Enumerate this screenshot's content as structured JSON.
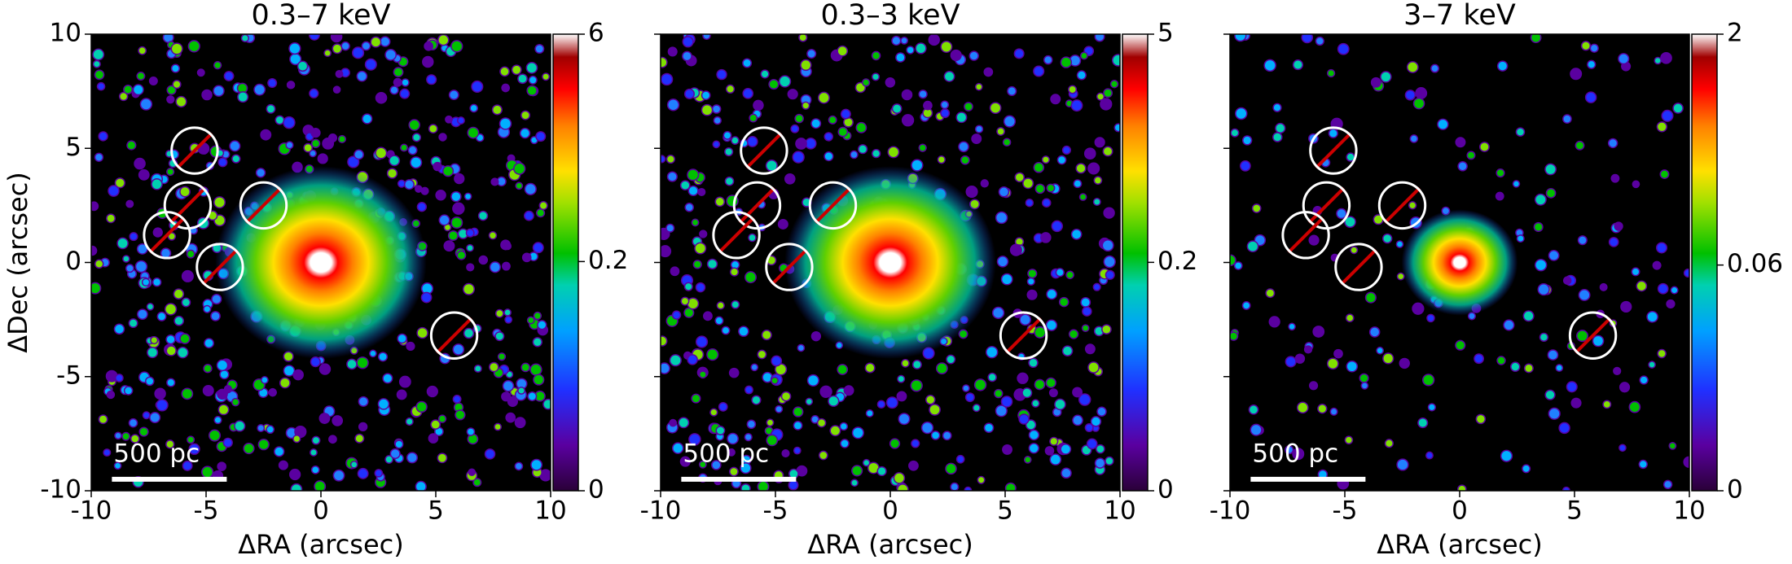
{
  "chart_data": [
    {
      "type": "image",
      "title": "0.3–7 keV",
      "xlabel": "ΔRA (arcsec)",
      "ylabel": "ΔDec (arcsec)",
      "xlim": [
        -10,
        10
      ],
      "ylim": [
        -10,
        10
      ],
      "xticks": [
        -10,
        -5,
        0,
        5,
        10
      ],
      "yticks": [
        -10,
        -5,
        0,
        5,
        10
      ],
      "show_ytick_labels": true,
      "colorbar": {
        "lim": [
          0,
          6
        ],
        "ticks": [
          0,
          0.2,
          6
        ],
        "stretch": "asinh",
        "softening": 0.013
      },
      "markers": {
        "radius": 1,
        "x": [
          -5.5,
          -5.8,
          -6.7,
          -4.4,
          -2.5,
          5.8
        ],
        "y": [
          4.9,
          2.5,
          1.2,
          -0.2,
          2.5,
          -3.2
        ]
      },
      "scalebar": {
        "label": "500 pc",
        "length": 5
      }
    },
    {
      "type": "image",
      "title": "0.3–3 keV",
      "xlabel": "ΔRA (arcsec)",
      "xlim": [
        -10,
        10
      ],
      "ylim": [
        -10,
        10
      ],
      "xticks": [
        -10,
        -5,
        0,
        5,
        10
      ],
      "yticks": [
        -10,
        -5,
        0,
        5,
        10
      ],
      "show_ytick_labels": false,
      "colorbar": {
        "lim": [
          0,
          5
        ],
        "ticks": [
          0,
          0.2,
          5
        ],
        "stretch": "asinh",
        "softening": 0.016
      },
      "markers": {
        "radius": 1,
        "x": [
          -5.5,
          -5.8,
          -6.7,
          -4.4,
          -2.5,
          5.8
        ],
        "y": [
          4.9,
          2.5,
          1.2,
          -0.2,
          2.5,
          -3.2
        ]
      },
      "scalebar": {
        "label": "500 pc",
        "length": 5
      }
    },
    {
      "type": "image",
      "title": "3–7 keV",
      "xlabel": "ΔRA (arcsec)",
      "xlim": [
        -10,
        10
      ],
      "ylim": [
        -10,
        10
      ],
      "xticks": [
        -10,
        -5,
        0,
        5,
        10
      ],
      "yticks": [
        -10,
        -5,
        0,
        5,
        10
      ],
      "show_ytick_labels": false,
      "colorbar": {
        "lim": [
          0,
          2
        ],
        "ticks": [
          0,
          0.06,
          2
        ],
        "stretch": "asinh",
        "softening": 0.0039
      },
      "markers": {
        "radius": 1,
        "x": [
          -5.5,
          -5.8,
          -6.7,
          -4.4,
          -2.5,
          5.8
        ],
        "y": [
          4.9,
          2.5,
          1.2,
          -0.2,
          2.5,
          -3.2
        ]
      },
      "scalebar": {
        "label": "500 pc",
        "length": 5
      }
    }
  ]
}
